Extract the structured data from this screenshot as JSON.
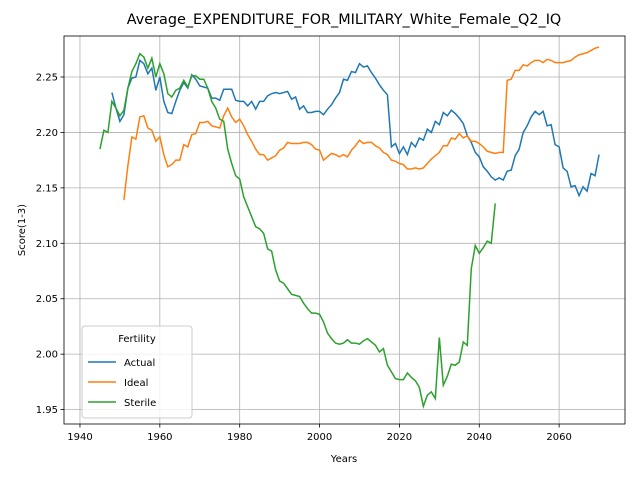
{
  "chart_data": {
    "type": "line",
    "title": "Average_EXPENDITURE_FOR_MILITARY_White_Female_Q2_IQ",
    "xlabel": "Years",
    "ylabel": "Score(1-3)",
    "legend_title": "Fertility",
    "legend": "lower left",
    "grid": true,
    "xlim": [
      1936,
      2076.5
    ],
    "ylim": [
      1.937,
      2.287
    ],
    "xticks": [
      1940,
      1960,
      1980,
      2000,
      2020,
      2040,
      2060
    ],
    "yticks": [
      1.95,
      {
        "value": 2.0,
        "label": "2.00"
      },
      2.05,
      {
        "value": 2.1,
        "label": "2.10"
      },
      2.15,
      {
        "value": 2.2,
        "label": "2.20"
      },
      2.25
    ],
    "x": [
      1945,
      1946,
      1947,
      1948,
      1949,
      1950,
      1951,
      1952,
      1953,
      1954,
      1955,
      1956,
      1957,
      1958,
      1959,
      1960,
      1961,
      1962,
      1963,
      1964,
      1965,
      1966,
      1967,
      1968,
      1969,
      1970,
      1971,
      1972,
      1973,
      1974,
      1975,
      1976,
      1977,
      1978,
      1979,
      1980,
      1981,
      1982,
      1983,
      1984,
      1985,
      1986,
      1987,
      1988,
      1989,
      1990,
      1991,
      1992,
      1993,
      1994,
      1995,
      1996,
      1997,
      1998,
      1999,
      2000,
      2001,
      2002,
      2003,
      2004,
      2005,
      2006,
      2007,
      2008,
      2009,
      2010,
      2011,
      2012,
      2013,
      2014,
      2015,
      2016,
      2017,
      2018,
      2019,
      2020,
      2021,
      2022,
      2023,
      2024,
      2025,
      2026,
      2027,
      2028,
      2029,
      2030,
      2031,
      2032,
      2033,
      2034,
      2035,
      2036,
      2037,
      2038,
      2039,
      2040,
      2041,
      2042,
      2043,
      2044,
      2045,
      2046,
      2047,
      2048,
      2049,
      2050,
      2051,
      2052,
      2053,
      2054,
      2055,
      2056,
      2057,
      2058,
      2059,
      2060,
      2061,
      2062,
      2063,
      2064,
      2065,
      2066,
      2067,
      2068,
      2069,
      2070
    ],
    "series": [
      {
        "name": "Actual",
        "color": "#1f77b4",
        "values": [
          null,
          null,
          null,
          2.236,
          2.222,
          2.21,
          2.216,
          2.24,
          2.249,
          2.25,
          2.265,
          2.262,
          2.253,
          2.258,
          2.238,
          2.25,
          2.228,
          2.218,
          2.217,
          2.228,
          2.238,
          2.245,
          2.24,
          2.252,
          2.248,
          2.242,
          2.241,
          2.24,
          2.231,
          2.231,
          2.229,
          2.239,
          2.239,
          2.239,
          2.229,
          2.228,
          2.228,
          2.224,
          2.228,
          2.221,
          2.228,
          2.228,
          2.233,
          2.235,
          2.236,
          2.235,
          2.236,
          2.237,
          2.23,
          2.232,
          2.221,
          2.224,
          2.218,
          2.218,
          2.219,
          2.219,
          2.216,
          2.221,
          2.225,
          2.231,
          2.236,
          2.248,
          2.247,
          2.255,
          2.254,
          2.262,
          2.259,
          2.26,
          2.254,
          2.249,
          2.243,
          2.238,
          2.234,
          2.187,
          2.19,
          2.181,
          2.187,
          2.18,
          2.191,
          2.187,
          2.195,
          2.193,
          2.203,
          2.2,
          2.21,
          2.207,
          2.218,
          2.215,
          2.22,
          2.217,
          2.213,
          2.208,
          2.197,
          2.191,
          2.182,
          2.178,
          2.169,
          2.165,
          2.16,
          2.157,
          2.159,
          2.157,
          2.165,
          2.166,
          2.179,
          2.185,
          2.2,
          2.206,
          2.214,
          2.219,
          2.216,
          2.219,
          2.206,
          2.207,
          2.189,
          2.187,
          2.168,
          2.165,
          2.151,
          2.152,
          2.143,
          2.151,
          2.147,
          2.163,
          2.161,
          2.18
        ]
      },
      {
        "name": "Ideal",
        "color": "#ff7f0e",
        "values": [
          null,
          null,
          null,
          null,
          null,
          null,
          2.139,
          2.17,
          2.196,
          2.194,
          2.214,
          2.215,
          2.204,
          2.202,
          2.192,
          2.196,
          2.18,
          2.169,
          2.171,
          2.175,
          2.175,
          2.189,
          2.187,
          2.198,
          2.199,
          2.209,
          2.209,
          2.21,
          2.206,
          2.205,
          2.204,
          2.215,
          2.222,
          2.214,
          2.209,
          2.212,
          2.206,
          2.198,
          2.192,
          2.185,
          2.18,
          2.18,
          2.175,
          2.177,
          2.179,
          2.184,
          2.186,
          2.191,
          2.19,
          2.19,
          2.19,
          2.191,
          2.191,
          2.189,
          2.185,
          2.184,
          2.175,
          2.178,
          2.181,
          2.18,
          2.178,
          2.18,
          2.178,
          2.184,
          2.188,
          2.193,
          2.19,
          2.191,
          2.191,
          2.188,
          2.186,
          2.182,
          2.18,
          2.175,
          2.174,
          2.172,
          2.171,
          2.167,
          2.167,
          2.168,
          2.167,
          2.168,
          2.172,
          2.176,
          2.179,
          2.182,
          2.188,
          2.188,
          2.195,
          2.194,
          2.199,
          2.195,
          2.197,
          2.192,
          2.192,
          2.19,
          2.187,
          2.183,
          2.182,
          2.181,
          2.182,
          2.182,
          2.247,
          2.248,
          2.256,
          2.256,
          2.261,
          2.26,
          2.263,
          2.265,
          2.265,
          2.263,
          2.266,
          2.265,
          2.263,
          2.263,
          2.263,
          2.264,
          2.265,
          2.268,
          2.27,
          2.271,
          2.272,
          2.274,
          2.276,
          2.277
        ]
      },
      {
        "name": "Sterile",
        "color": "#2ca02c",
        "values": [
          2.185,
          2.202,
          2.2,
          2.228,
          2.222,
          2.215,
          2.22,
          2.24,
          2.255,
          2.262,
          2.271,
          2.268,
          2.258,
          2.267,
          2.25,
          2.262,
          2.253,
          2.235,
          2.232,
          2.238,
          2.24,
          2.247,
          2.241,
          2.251,
          2.251,
          2.248,
          2.248,
          2.24,
          2.228,
          2.222,
          2.212,
          2.21,
          2.185,
          2.172,
          2.161,
          2.158,
          2.142,
          2.133,
          2.124,
          2.115,
          2.113,
          2.109,
          2.095,
          2.093,
          2.076,
          2.066,
          2.064,
          2.059,
          2.054,
          2.053,
          2.052,
          2.046,
          2.041,
          2.037,
          2.037,
          2.036,
          2.029,
          2.019,
          2.014,
          2.01,
          2.009,
          2.01,
          2.013,
          2.01,
          2.01,
          2.009,
          2.012,
          2.014,
          2.011,
          2.008,
          2.002,
          2.005,
          1.99,
          1.984,
          1.978,
          1.977,
          1.977,
          1.983,
          1.979,
          1.976,
          1.97,
          1.953,
          1.963,
          1.966,
          1.96,
          2.015,
          1.972,
          1.98,
          1.991,
          1.99,
          1.993,
          2.011,
          2.008,
          2.077,
          2.098,
          2.091,
          2.096,
          2.102,
          2.1,
          2.136,
          null,
          null,
          null,
          null,
          null,
          null,
          null,
          null,
          null,
          null,
          null,
          null,
          null,
          null,
          null,
          null,
          null,
          null,
          null,
          null,
          null,
          null,
          null,
          null,
          null,
          null
        ]
      }
    ]
  }
}
